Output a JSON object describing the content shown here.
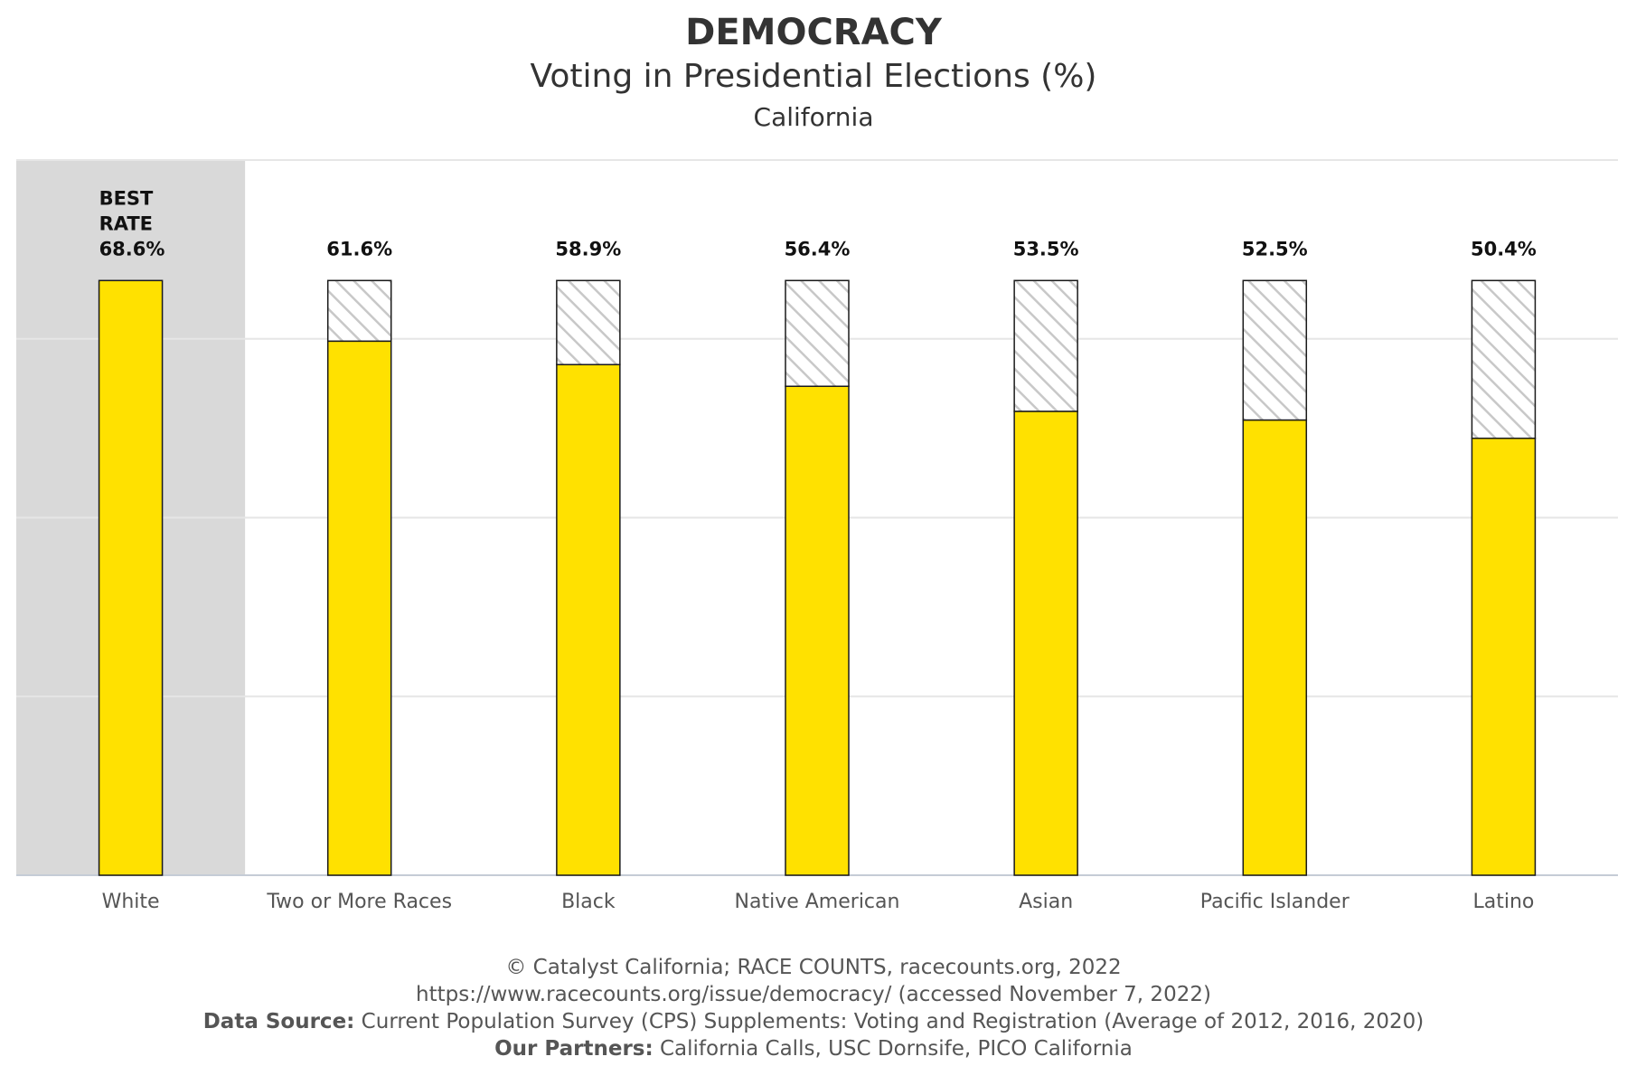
{
  "title": "DEMOCRACY",
  "subtitle": "Voting in Presidential Elections (%)",
  "region": "California",
  "colors": {
    "bar": "#FFE100",
    "highlight_bg": "#D9D9D9",
    "hatch": "#C8C8C8",
    "grid": "#E6E6E6",
    "outline": "#1A1A1A"
  },
  "chart_data": {
    "type": "bar",
    "categories": [
      "White",
      "Two or More Races",
      "Black",
      "Native American",
      "Asian",
      "Pacific Islander",
      "Latino"
    ],
    "values": [
      68.6,
      61.6,
      58.9,
      56.4,
      53.5,
      52.5,
      50.4
    ],
    "value_labels": [
      "68.6%",
      "61.6%",
      "58.9%",
      "56.4%",
      "53.5%",
      "52.5%",
      "50.4%"
    ],
    "best_rate_label_lines": [
      "BEST",
      "RATE"
    ],
    "best_category_index": 0,
    "gap_to_best": "hatched",
    "ylim": [
      0,
      82.5
    ],
    "grid": true,
    "ytick_labels_shown": false
  },
  "footer": {
    "line1": "© Catalyst California; RACE COUNTS, racecounts.org, 2022",
    "line2": "https://www.racecounts.org/issue/democracy/ (accessed November 7, 2022)",
    "data_source_label": "Data Source:",
    "data_source_text": " Current Population Survey (CPS) Supplements: Voting and Registration (Average of 2012, 2016, 2020)",
    "partners_label": "Our Partners:",
    "partners_text": " California Calls, USC Dornsife, PICO California"
  }
}
